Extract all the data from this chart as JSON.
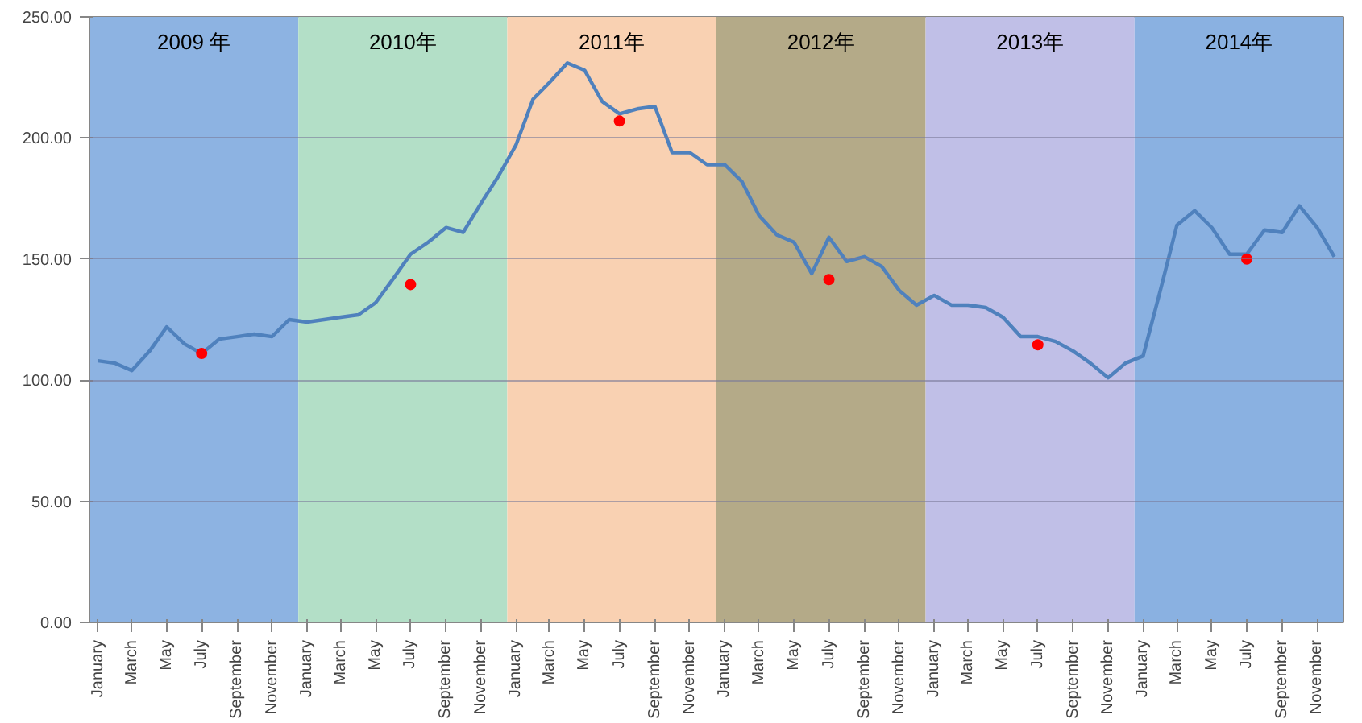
{
  "chart_data": {
    "type": "line",
    "x": [
      "2009-01-16",
      "2009-02-15",
      "2009-03-16",
      "2009-04-16",
      "2009-05-16",
      "2009-06-16",
      "2009-07-16",
      "2009-08-16",
      "2009-09-16",
      "2009-10-16",
      "2009-11-16",
      "2009-12-16",
      "2010-01-16",
      "2010-02-15",
      "2010-03-16",
      "2010-04-16",
      "2010-05-16",
      "2010-06-16",
      "2010-07-16",
      "2010-08-16",
      "2010-09-16",
      "2010-10-16",
      "2010-11-16",
      "2010-12-16",
      "2011-01-16",
      "2011-02-15",
      "2011-03-16",
      "2011-04-16",
      "2011-05-16",
      "2011-06-16",
      "2011-07-16",
      "2011-08-16",
      "2011-09-16",
      "2011-10-16",
      "2011-11-16",
      "2011-12-16",
      "2012-01-16",
      "2012-02-15",
      "2012-03-16",
      "2012-04-16",
      "2012-05-16",
      "2012-06-16",
      "2012-07-16",
      "2012-08-16",
      "2012-09-16",
      "2012-10-16",
      "2012-11-16",
      "2012-12-16",
      "2013-01-16",
      "2013-02-15",
      "2013-03-16",
      "2013-04-16",
      "2013-05-16",
      "2013-06-16",
      "2013-07-16",
      "2013-08-16",
      "2013-09-16",
      "2013-10-16",
      "2013-11-16",
      "2013-12-16",
      "2014-01-16",
      "2014-02-15",
      "2014-03-16",
      "2014-04-16",
      "2014-05-16",
      "2014-06-16",
      "2014-07-16",
      "2014-08-16",
      "2014-09-16",
      "2014-10-16",
      "2014-11-16",
      "2014-12-16"
    ],
    "series": [
      {
        "color": "#4f81bd",
        "marker": "none",
        "values": [
          108,
          107,
          104,
          112,
          122,
          115,
          111,
          117,
          118,
          119,
          118,
          125,
          124,
          125,
          126,
          127,
          132,
          142,
          152,
          157,
          163,
          161,
          173,
          184,
          197,
          216,
          223,
          231,
          228,
          215,
          210,
          212,
          213,
          194,
          194,
          189,
          189,
          182,
          168,
          160,
          157,
          144,
          159,
          149,
          151,
          147,
          137,
          131,
          135,
          131,
          131,
          130,
          126,
          118,
          118,
          116,
          112,
          107,
          101,
          107,
          110,
          137,
          164,
          170,
          163,
          152,
          152,
          162,
          161,
          172,
          163,
          151
        ]
      },
      {
        "type": "scatter",
        "color": "#ff0000",
        "marker": "circle",
        "x": [
          "2009-07-16",
          "2010-07-16",
          "2011-07-16",
          "2012-07-16",
          "2013-07-16",
          "2014-07-16"
        ],
        "values": [
          111,
          139.5,
          207,
          141.5,
          114.6,
          150
        ]
      }
    ],
    "xlim": [
      "2009-01-01",
      "2015-01-01"
    ],
    "xticks": [
      {
        "value": "2009-01-16",
        "label": "January"
      },
      {
        "value": "2009-03-16",
        "label": "March"
      },
      {
        "value": "2009-05-16",
        "label": "May"
      },
      {
        "value": "2009-07-16",
        "label": "July"
      },
      {
        "value": "2009-09-16",
        "label": "September"
      },
      {
        "value": "2009-11-16",
        "label": "November"
      },
      {
        "value": "2010-01-16",
        "label": "January"
      },
      {
        "value": "2010-03-16",
        "label": "March"
      },
      {
        "value": "2010-05-16",
        "label": "May"
      },
      {
        "value": "2010-07-16",
        "label": "July"
      },
      {
        "value": "2010-09-16",
        "label": "September"
      },
      {
        "value": "2010-11-16",
        "label": "November"
      },
      {
        "value": "2011-01-16",
        "label": "January"
      },
      {
        "value": "2011-03-16",
        "label": "March"
      },
      {
        "value": "2011-05-16",
        "label": "May"
      },
      {
        "value": "2011-07-16",
        "label": "July"
      },
      {
        "value": "2011-09-16",
        "label": "September"
      },
      {
        "value": "2011-11-16",
        "label": "November"
      },
      {
        "value": "2012-01-16",
        "label": "January"
      },
      {
        "value": "2012-03-16",
        "label": "March"
      },
      {
        "value": "2012-05-16",
        "label": "May"
      },
      {
        "value": "2012-07-16",
        "label": "July"
      },
      {
        "value": "2012-09-16",
        "label": "September"
      },
      {
        "value": "2012-11-16",
        "label": "November"
      },
      {
        "value": "2013-01-16",
        "label": "January"
      },
      {
        "value": "2013-03-16",
        "label": "March"
      },
      {
        "value": "2013-05-16",
        "label": "May"
      },
      {
        "value": "2013-07-16",
        "label": "July"
      },
      {
        "value": "2013-09-16",
        "label": "September"
      },
      {
        "value": "2013-11-16",
        "label": "November"
      },
      {
        "value": "2014-01-16",
        "label": "January"
      },
      {
        "value": "2014-03-16",
        "label": "March"
      },
      {
        "value": "2014-05-16",
        "label": "May"
      },
      {
        "value": "2014-07-16",
        "label": "July"
      },
      {
        "value": "2014-09-16",
        "label": "September"
      },
      {
        "value": "2014-11-16",
        "label": "November"
      }
    ],
    "ylim": [
      0,
      250
    ],
    "yticks": [
      {
        "value": 0,
        "label": "0.00"
      },
      {
        "value": 50,
        "label": "50.00"
      },
      {
        "value": 100,
        "label": "100.00"
      },
      {
        "value": 150,
        "label": "150.00"
      },
      {
        "value": 200,
        "label": "200.00"
      },
      {
        "value": 250,
        "label": "250.00"
      }
    ],
    "bands": [
      {
        "axis": "x",
        "from": "2009-01-01",
        "to": "2010-01-01",
        "label": "2009 年",
        "color": "#8db3e2"
      },
      {
        "axis": "x",
        "from": "2010-01-01",
        "to": "2011-01-01",
        "label": "2010年",
        "color": "#b3dfc7"
      },
      {
        "axis": "x",
        "from": "2011-01-01",
        "to": "2012-01-01",
        "label": "2011年",
        "color": "#f9d1b2"
      },
      {
        "axis": "x",
        "from": "2012-01-01",
        "to": "2013-01-01",
        "label": "2012年",
        "color": "#b4aa88"
      },
      {
        "axis": "x",
        "from": "2013-01-01",
        "to": "2014-01-01",
        "label": "2013年",
        "color": "#c0bfe7"
      },
      {
        "axis": "x",
        "from": "2014-01-01",
        "to": "2015-01-01",
        "label": "2014年",
        "color": "#8ab1e1"
      }
    ],
    "grid": "y"
  }
}
